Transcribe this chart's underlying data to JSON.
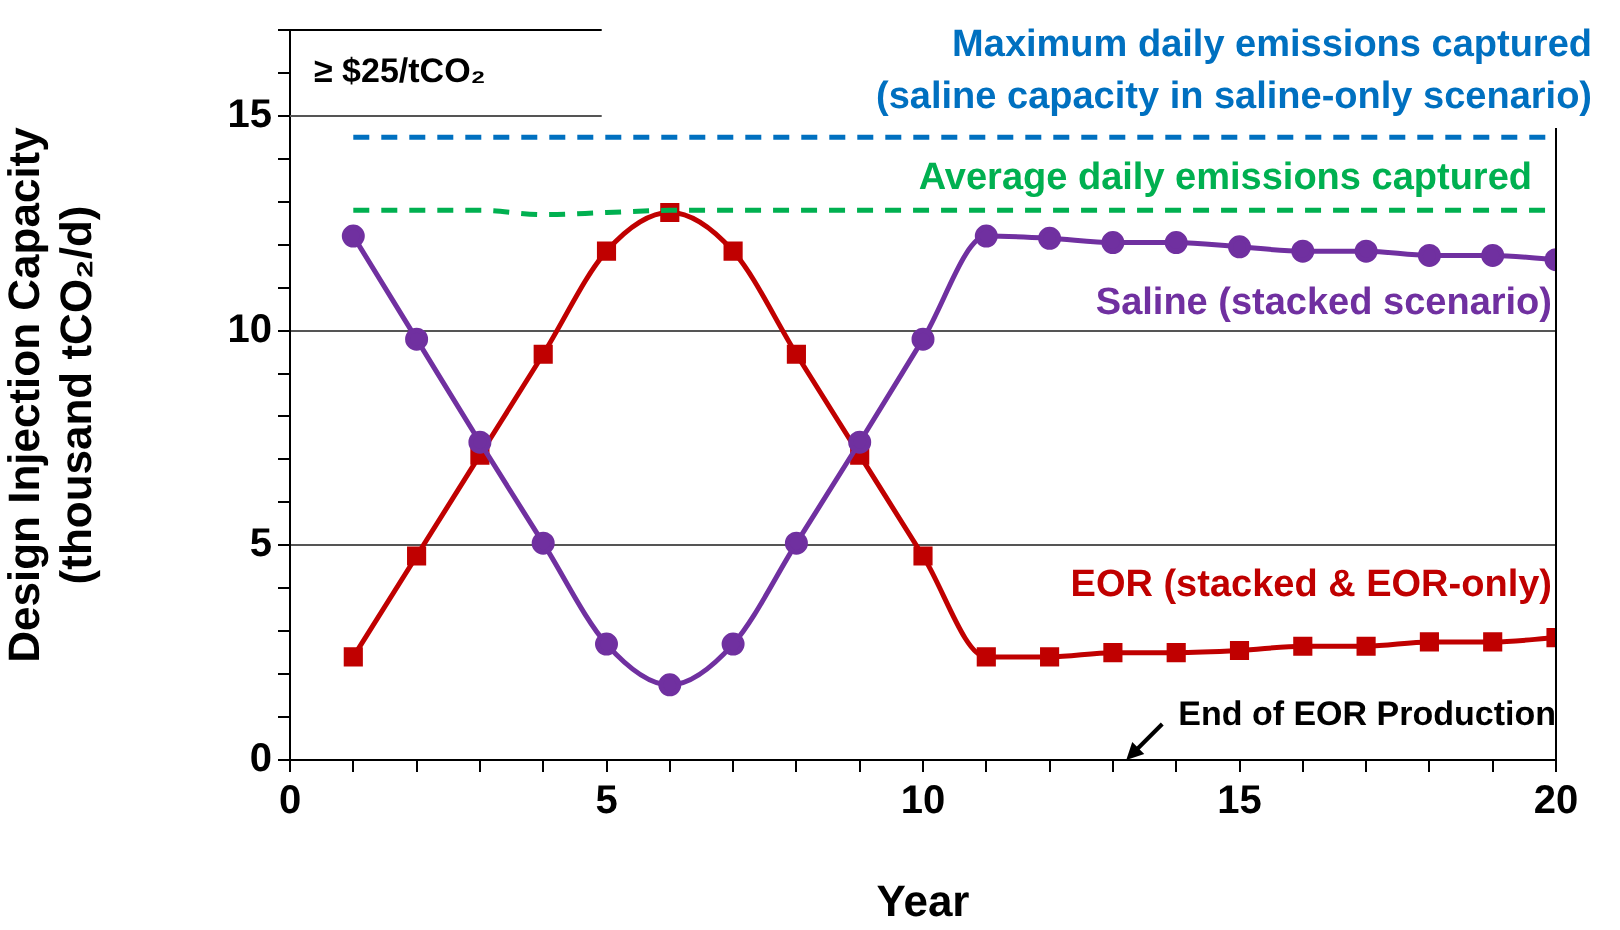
{
  "chart_data": {
    "type": "line",
    "xlabel": "Year",
    "ylabel": "Design Injection Capacity (thousand tCO₂/d)",
    "x": [
      1,
      2,
      3,
      4,
      5,
      6,
      7,
      8,
      9,
      10,
      11,
      12,
      13,
      14,
      15,
      16,
      17,
      18,
      19,
      20
    ],
    "xlim": [
      0,
      20
    ],
    "xticks": [
      0,
      {
        "value": 1,
        "label": null
      },
      {
        "value": 2,
        "label": null
      },
      {
        "value": 3,
        "label": null
      },
      {
        "value": 4,
        "label": null
      },
      5,
      {
        "value": 6,
        "label": null
      },
      {
        "value": 7,
        "label": null
      },
      {
        "value": 8,
        "label": null
      },
      {
        "value": 9,
        "label": null
      },
      10,
      {
        "value": 11,
        "label": null
      },
      {
        "value": 12,
        "label": null
      },
      {
        "value": 13,
        "label": null
      },
      {
        "value": 14,
        "label": null
      },
      15,
      {
        "value": 16,
        "label": null
      },
      {
        "value": 17,
        "label": null
      },
      {
        "value": 18,
        "label": null
      },
      {
        "value": 19,
        "label": null
      },
      20
    ],
    "ylim": [
      0,
      17
    ],
    "yticks": [
      0,
      {
        "value": 1,
        "label": null
      },
      {
        "value": 2,
        "label": null
      },
      {
        "value": 3,
        "label": null
      },
      {
        "value": 4,
        "label": null
      },
      5,
      {
        "value": 6,
        "label": null
      },
      {
        "value": 7,
        "label": null
      },
      {
        "value": 8,
        "label": null
      },
      {
        "value": 9,
        "label": null
      },
      10,
      {
        "value": 11,
        "label": null
      },
      {
        "value": 12,
        "label": null
      },
      {
        "value": 13,
        "label": null
      },
      {
        "value": 14,
        "label": null
      },
      15,
      {
        "value": 16,
        "label": null
      },
      {
        "value": 17,
        "label": null
      }
    ],
    "grid": "y",
    "legend": false,
    "line_style": "solid",
    "series": [
      {
        "name": "Maximum daily emissions captured (saline capacity in saline-only scenario)",
        "color": "#0070c0",
        "marker": "none",
        "line_style": "dashed",
        "values": [
          14.5,
          14.5,
          14.5,
          14.5,
          14.5,
          14.5,
          14.5,
          14.5,
          14.5,
          14.5,
          14.5,
          14.5,
          14.5,
          14.5,
          14.5,
          14.5,
          14.5,
          14.5,
          14.5,
          14.5
        ]
      },
      {
        "name": "Average daily emissions captured",
        "color": "#00b050",
        "marker": "none",
        "line_style": "dashed",
        "values": [
          12.8,
          12.8,
          12.8,
          12.7,
          12.75,
          12.8,
          12.8,
          12.8,
          12.8,
          12.8,
          12.8,
          12.8,
          12.8,
          12.8,
          12.8,
          12.8,
          12.8,
          12.8,
          12.8,
          12.8
        ]
      },
      {
        "name": "Saline (stacked scenario)",
        "color": "#7030a0",
        "marker": "circle",
        "values": [
          12.2,
          9.8,
          7.4,
          5.05,
          2.7,
          1.75,
          2.7,
          5.05,
          7.4,
          9.8,
          12.2,
          12.15,
          12.05,
          12.05,
          11.95,
          11.85,
          11.85,
          11.75,
          11.75,
          11.65
        ]
      },
      {
        "name": "EOR (stacked & EOR-only)",
        "color": "#c00000",
        "marker": "square",
        "values": [
          2.4,
          4.75,
          7.1,
          9.45,
          11.85,
          12.75,
          11.85,
          9.45,
          7.1,
          4.75,
          2.4,
          2.4,
          2.5,
          2.5,
          2.55,
          2.65,
          2.65,
          2.75,
          2.75,
          2.85
        ]
      }
    ],
    "annotations": [
      "≥ $25/tCO₂",
      "End of EOR Production"
    ]
  }
}
